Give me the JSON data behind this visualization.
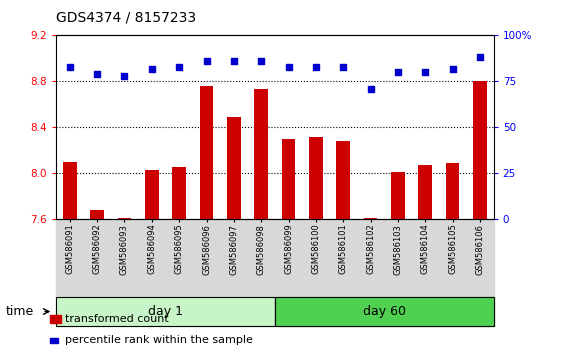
{
  "title": "GDS4374 / 8157233",
  "samples": [
    "GSM586091",
    "GSM586092",
    "GSM586093",
    "GSM586094",
    "GSM586095",
    "GSM586096",
    "GSM586097",
    "GSM586098",
    "GSM586099",
    "GSM586100",
    "GSM586101",
    "GSM586102",
    "GSM586103",
    "GSM586104",
    "GSM586105",
    "GSM586106"
  ],
  "bar_values": [
    8.1,
    7.68,
    7.61,
    8.03,
    8.06,
    8.76,
    8.49,
    8.73,
    8.3,
    8.32,
    8.28,
    7.61,
    8.01,
    8.07,
    8.09,
    8.8
  ],
  "dot_values": [
    83,
    79,
    78,
    82,
    83,
    86,
    86,
    86,
    83,
    83,
    83,
    71,
    80,
    80,
    82,
    88
  ],
  "bar_color": "#cc0000",
  "dot_color": "#0000cc",
  "ylim_left": [
    7.6,
    9.2
  ],
  "ylim_right": [
    0,
    100
  ],
  "yticks_left": [
    7.6,
    8.0,
    8.4,
    8.8,
    9.2
  ],
  "yticks_right": [
    0,
    25,
    50,
    75,
    100
  ],
  "ytick_labels_right": [
    "0",
    "25",
    "50",
    "75",
    "100%"
  ],
  "grid_values": [
    8.0,
    8.4,
    8.8
  ],
  "day1_samples": 8,
  "day60_samples": 8,
  "day1_label": "day 1",
  "day60_label": "day 60",
  "time_label": "time",
  "legend_bar_label": "transformed count",
  "legend_dot_label": "percentile rank within the sample",
  "bar_width": 0.5,
  "day1_color": "#c8f5c8",
  "day60_color": "#50d050",
  "bar_bottom": 7.6
}
